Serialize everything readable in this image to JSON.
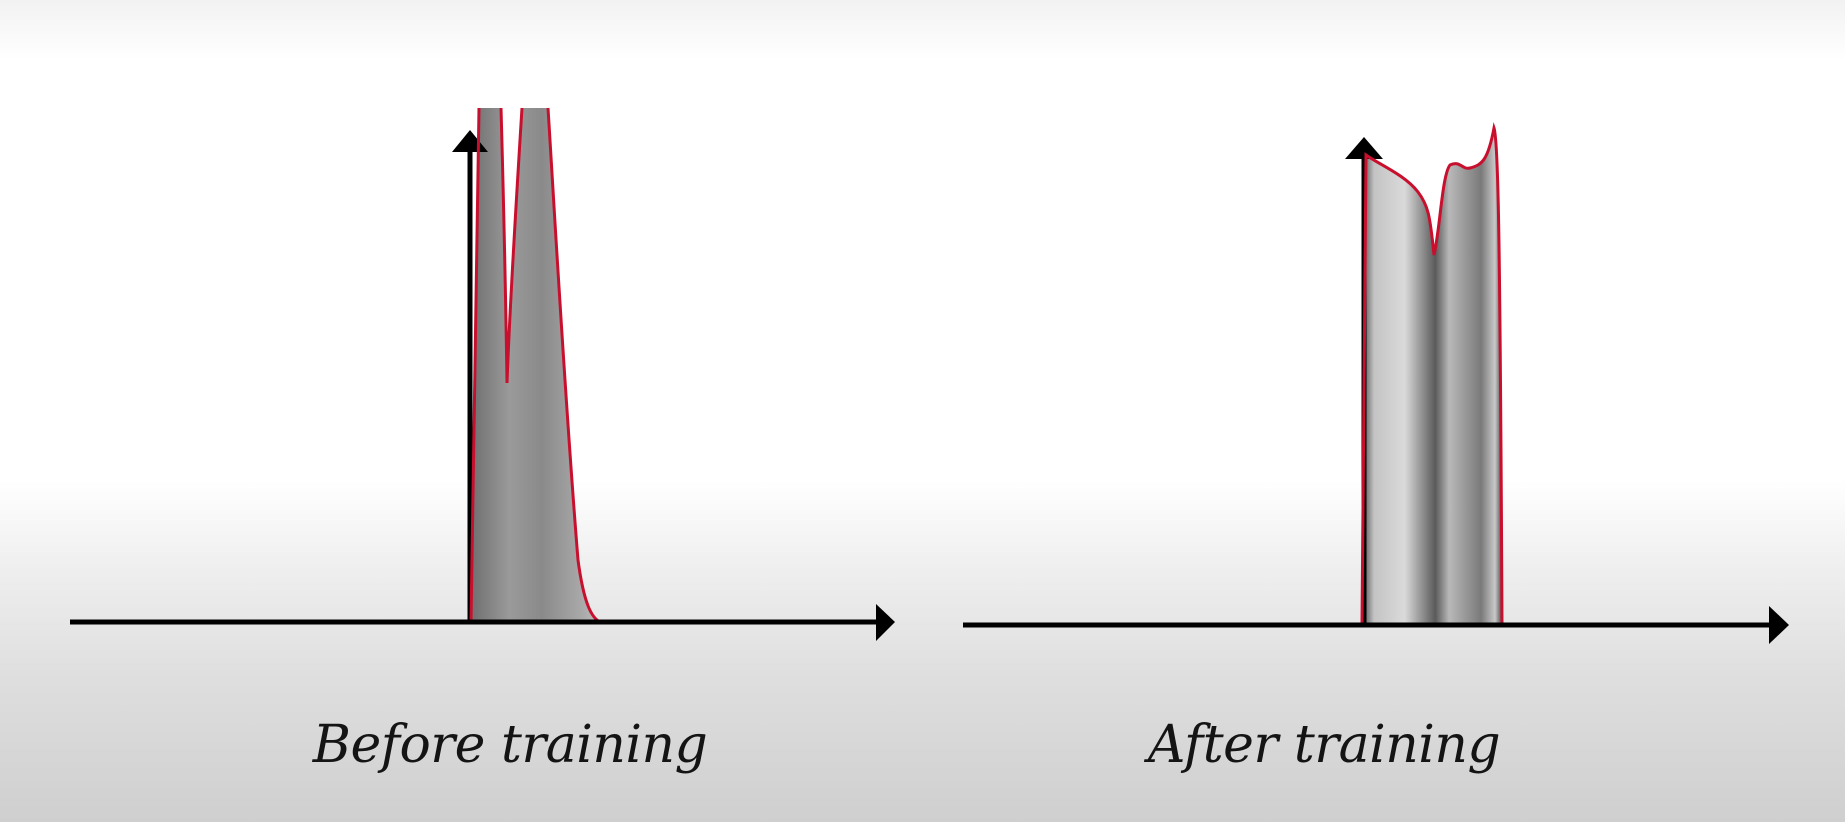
{
  "panels": [
    {
      "caption": "Before training",
      "curve_color": "#c8102e",
      "fill_color": "#888888"
    },
    {
      "caption": "After training",
      "curve_color": "#c8102e",
      "fill_color": "#b4b4b4"
    }
  ],
  "colors": {
    "axis": "#000000",
    "curve": "#c8102e"
  }
}
